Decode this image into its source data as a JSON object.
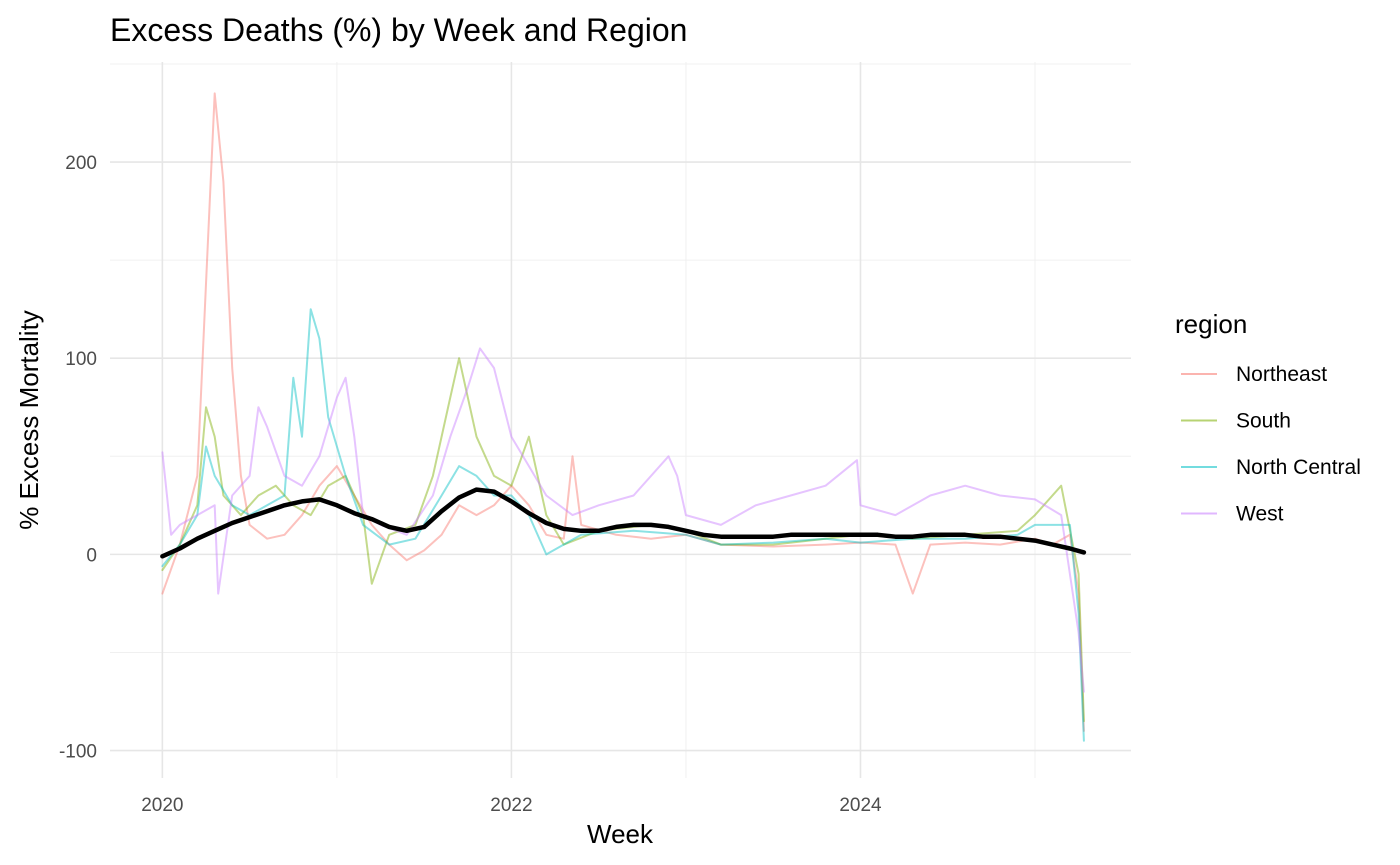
{
  "chart_data": {
    "type": "line",
    "title": "Excess Deaths (%) by Week and Region",
    "xlabel": "Week",
    "ylabel": "% Excess Mortality",
    "x_range": [
      2019.7,
      2025.55
    ],
    "ylim": [
      -114,
      251
    ],
    "x_ticks": [
      {
        "value": 2020,
        "label": "2020"
      },
      {
        "value": 2022,
        "label": "2022"
      },
      {
        "value": 2024,
        "label": "2024"
      }
    ],
    "x_minor_ticks": [
      2021,
      2023,
      2025
    ],
    "y_ticks": [
      {
        "value": -100,
        "label": "-100"
      },
      {
        "value": 0,
        "label": "0"
      },
      {
        "value": 100,
        "label": "100"
      },
      {
        "value": 200,
        "label": "200"
      }
    ],
    "y_minor_ticks": [
      -50,
      50,
      150,
      250
    ],
    "grid": true,
    "legend": {
      "title": "region",
      "position": "right"
    },
    "series": [
      {
        "name": "Northeast",
        "color": "#F8766D",
        "points": [
          [
            2020.0,
            -20
          ],
          [
            2020.1,
            5
          ],
          [
            2020.2,
            40
          ],
          [
            2020.25,
            138
          ],
          [
            2020.3,
            235
          ],
          [
            2020.35,
            190
          ],
          [
            2020.4,
            95
          ],
          [
            2020.45,
            40
          ],
          [
            2020.5,
            15
          ],
          [
            2020.6,
            8
          ],
          [
            2020.7,
            10
          ],
          [
            2020.8,
            20
          ],
          [
            2020.9,
            35
          ],
          [
            2021.0,
            45
          ],
          [
            2021.1,
            30
          ],
          [
            2021.2,
            15
          ],
          [
            2021.3,
            5
          ],
          [
            2021.4,
            -3
          ],
          [
            2021.5,
            2
          ],
          [
            2021.6,
            10
          ],
          [
            2021.7,
            25
          ],
          [
            2021.8,
            20
          ],
          [
            2021.9,
            25
          ],
          [
            2022.0,
            35
          ],
          [
            2022.1,
            25
          ],
          [
            2022.2,
            10
          ],
          [
            2022.3,
            8
          ],
          [
            2022.35,
            50
          ],
          [
            2022.4,
            15
          ],
          [
            2022.6,
            10
          ],
          [
            2022.8,
            8
          ],
          [
            2023.0,
            10
          ],
          [
            2023.2,
            5
          ],
          [
            2023.5,
            4
          ],
          [
            2023.8,
            5
          ],
          [
            2024.0,
            6
          ],
          [
            2024.2,
            5
          ],
          [
            2024.3,
            -20
          ],
          [
            2024.4,
            5
          ],
          [
            2024.6,
            6
          ],
          [
            2024.8,
            5
          ],
          [
            2025.0,
            8
          ],
          [
            2025.1,
            5
          ],
          [
            2025.2,
            10
          ],
          [
            2025.25,
            -20
          ],
          [
            2025.28,
            -90
          ]
        ]
      },
      {
        "name": "South",
        "color": "#7CAE00",
        "points": [
          [
            2020.0,
            -8
          ],
          [
            2020.1,
            5
          ],
          [
            2020.2,
            25
          ],
          [
            2020.25,
            75
          ],
          [
            2020.3,
            60
          ],
          [
            2020.35,
            30
          ],
          [
            2020.45,
            20
          ],
          [
            2020.55,
            30
          ],
          [
            2020.65,
            35
          ],
          [
            2020.75,
            25
          ],
          [
            2020.85,
            20
          ],
          [
            2020.95,
            35
          ],
          [
            2021.05,
            40
          ],
          [
            2021.15,
            20
          ],
          [
            2021.2,
            -15
          ],
          [
            2021.3,
            10
          ],
          [
            2021.45,
            15
          ],
          [
            2021.55,
            40
          ],
          [
            2021.65,
            80
          ],
          [
            2021.7,
            100
          ],
          [
            2021.8,
            60
          ],
          [
            2021.9,
            40
          ],
          [
            2022.0,
            35
          ],
          [
            2022.1,
            60
          ],
          [
            2022.2,
            20
          ],
          [
            2022.3,
            5
          ],
          [
            2022.5,
            12
          ],
          [
            2022.8,
            15
          ],
          [
            2023.0,
            12
          ],
          [
            2023.2,
            5
          ],
          [
            2023.5,
            5
          ],
          [
            2023.8,
            8
          ],
          [
            2024.0,
            10
          ],
          [
            2024.3,
            8
          ],
          [
            2024.6,
            10
          ],
          [
            2024.9,
            12
          ],
          [
            2025.0,
            20
          ],
          [
            2025.15,
            35
          ],
          [
            2025.25,
            -10
          ],
          [
            2025.28,
            -85
          ]
        ]
      },
      {
        "name": "North Central",
        "color": "#00BFC4",
        "points": [
          [
            2020.0,
            -6
          ],
          [
            2020.1,
            5
          ],
          [
            2020.2,
            20
          ],
          [
            2020.25,
            55
          ],
          [
            2020.3,
            40
          ],
          [
            2020.4,
            25
          ],
          [
            2020.5,
            20
          ],
          [
            2020.6,
            25
          ],
          [
            2020.7,
            30
          ],
          [
            2020.75,
            90
          ],
          [
            2020.8,
            60
          ],
          [
            2020.85,
            125
          ],
          [
            2020.9,
            110
          ],
          [
            2020.95,
            70
          ],
          [
            2021.05,
            40
          ],
          [
            2021.15,
            15
          ],
          [
            2021.3,
            5
          ],
          [
            2021.45,
            8
          ],
          [
            2021.6,
            30
          ],
          [
            2021.7,
            45
          ],
          [
            2021.8,
            40
          ],
          [
            2021.9,
            30
          ],
          [
            2022.0,
            30
          ],
          [
            2022.1,
            20
          ],
          [
            2022.2,
            0
          ],
          [
            2022.4,
            10
          ],
          [
            2022.7,
            12
          ],
          [
            2023.0,
            10
          ],
          [
            2023.2,
            5
          ],
          [
            2023.5,
            6
          ],
          [
            2023.8,
            8
          ],
          [
            2024.0,
            6
          ],
          [
            2024.3,
            8
          ],
          [
            2024.6,
            8
          ],
          [
            2024.9,
            10
          ],
          [
            2025.0,
            15
          ],
          [
            2025.2,
            15
          ],
          [
            2025.25,
            -30
          ],
          [
            2025.28,
            -95
          ]
        ]
      },
      {
        "name": "West",
        "color": "#C77CFF",
        "points": [
          [
            2020.0,
            52
          ],
          [
            2020.05,
            10
          ],
          [
            2020.1,
            15
          ],
          [
            2020.2,
            20
          ],
          [
            2020.3,
            25
          ],
          [
            2020.32,
            -20
          ],
          [
            2020.4,
            30
          ],
          [
            2020.5,
            40
          ],
          [
            2020.55,
            75
          ],
          [
            2020.6,
            65
          ],
          [
            2020.7,
            40
          ],
          [
            2020.8,
            35
          ],
          [
            2020.9,
            50
          ],
          [
            2021.0,
            80
          ],
          [
            2021.05,
            90
          ],
          [
            2021.1,
            60
          ],
          [
            2021.15,
            20
          ],
          [
            2021.25,
            15
          ],
          [
            2021.4,
            10
          ],
          [
            2021.55,
            30
          ],
          [
            2021.65,
            60
          ],
          [
            2021.75,
            85
          ],
          [
            2021.82,
            105
          ],
          [
            2021.9,
            95
          ],
          [
            2022.0,
            60
          ],
          [
            2022.1,
            45
          ],
          [
            2022.2,
            30
          ],
          [
            2022.35,
            20
          ],
          [
            2022.5,
            25
          ],
          [
            2022.7,
            30
          ],
          [
            2022.9,
            50
          ],
          [
            2022.95,
            40
          ],
          [
            2023.0,
            20
          ],
          [
            2023.2,
            15
          ],
          [
            2023.4,
            25
          ],
          [
            2023.6,
            30
          ],
          [
            2023.8,
            35
          ],
          [
            2023.98,
            48
          ],
          [
            2024.0,
            25
          ],
          [
            2024.2,
            20
          ],
          [
            2024.4,
            30
          ],
          [
            2024.6,
            35
          ],
          [
            2024.8,
            30
          ],
          [
            2025.0,
            28
          ],
          [
            2025.15,
            20
          ],
          [
            2025.25,
            -40
          ],
          [
            2025.28,
            -70
          ]
        ]
      },
      {
        "name": "",
        "color": "#000000",
        "points": [
          [
            2020.0,
            -1
          ],
          [
            2020.1,
            3
          ],
          [
            2020.2,
            8
          ],
          [
            2020.3,
            12
          ],
          [
            2020.4,
            16
          ],
          [
            2020.5,
            19
          ],
          [
            2020.6,
            22
          ],
          [
            2020.7,
            25
          ],
          [
            2020.8,
            27
          ],
          [
            2020.9,
            28
          ],
          [
            2021.0,
            25
          ],
          [
            2021.1,
            21
          ],
          [
            2021.2,
            18
          ],
          [
            2021.3,
            14
          ],
          [
            2021.4,
            12
          ],
          [
            2021.5,
            14
          ],
          [
            2021.6,
            22
          ],
          [
            2021.7,
            29
          ],
          [
            2021.8,
            33
          ],
          [
            2021.9,
            32
          ],
          [
            2022.0,
            27
          ],
          [
            2022.1,
            21
          ],
          [
            2022.2,
            16
          ],
          [
            2022.3,
            13
          ],
          [
            2022.4,
            12
          ],
          [
            2022.5,
            12
          ],
          [
            2022.6,
            14
          ],
          [
            2022.7,
            15
          ],
          [
            2022.8,
            15
          ],
          [
            2022.9,
            14
          ],
          [
            2023.0,
            12
          ],
          [
            2023.1,
            10
          ],
          [
            2023.2,
            9
          ],
          [
            2023.3,
            9
          ],
          [
            2023.4,
            9
          ],
          [
            2023.5,
            9
          ],
          [
            2023.6,
            10
          ],
          [
            2023.7,
            10
          ],
          [
            2023.8,
            10
          ],
          [
            2023.9,
            10
          ],
          [
            2024.0,
            10
          ],
          [
            2024.1,
            10
          ],
          [
            2024.2,
            9
          ],
          [
            2024.3,
            9
          ],
          [
            2024.4,
            10
          ],
          [
            2024.5,
            10
          ],
          [
            2024.6,
            10
          ],
          [
            2024.7,
            9
          ],
          [
            2024.8,
            9
          ],
          [
            2024.9,
            8
          ],
          [
            2025.0,
            7
          ],
          [
            2025.1,
            5
          ],
          [
            2025.2,
            3
          ],
          [
            2025.28,
            1
          ]
        ]
      }
    ]
  }
}
